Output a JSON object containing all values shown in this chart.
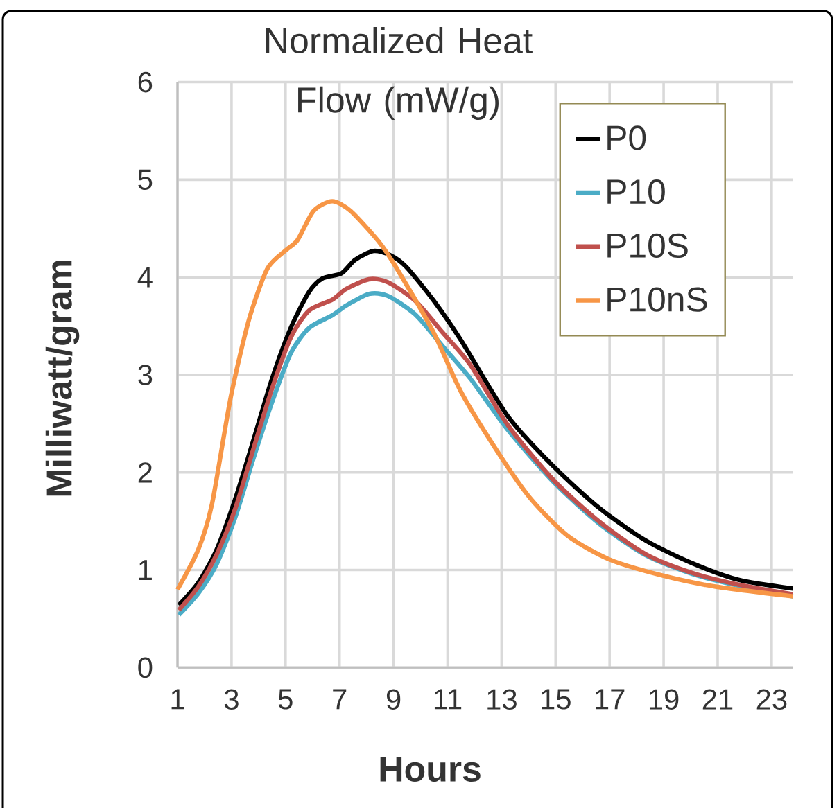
{
  "chart_data": {
    "type": "line",
    "title": "Normalized Heat Flow (mW/g)",
    "xlabel": "Hours",
    "ylabel": "Milliwatt/gram",
    "xlim": [
      1,
      23.8
    ],
    "xticks": [
      1,
      3,
      5,
      7,
      9,
      11,
      13,
      15,
      17,
      19,
      21,
      23
    ],
    "ylim": [
      0,
      6
    ],
    "yticks": [
      0,
      1,
      2,
      3,
      4,
      5,
      6
    ],
    "grid": true,
    "legend": "top right",
    "series": [
      {
        "name": "P0",
        "color": "#000000",
        "x": [
          1.05,
          1.77,
          2.45,
          3.14,
          3.82,
          4.5,
          5.19,
          5.87,
          6.38,
          7.07,
          7.58,
          8.26,
          8.86,
          9.46,
          10.49,
          11.51,
          13.22,
          14.93,
          16.64,
          18.35,
          20.06,
          21.77,
          23.79
        ],
        "values": [
          0.64,
          0.87,
          1.21,
          1.73,
          2.34,
          2.96,
          3.48,
          3.85,
          3.99,
          4.04,
          4.18,
          4.27,
          4.23,
          4.11,
          3.76,
          3.35,
          2.58,
          2.06,
          1.63,
          1.3,
          1.07,
          0.9,
          0.81
        ]
      },
      {
        "name": "P10",
        "color": "#4bacc6",
        "x": [
          1.05,
          1.77,
          2.45,
          3.14,
          3.82,
          4.5,
          5.19,
          5.87,
          6.73,
          7.24,
          8.09,
          8.78,
          9.8,
          10.83,
          11.85,
          13.22,
          14.93,
          16.64,
          18.35,
          20.06,
          21.77,
          23.79
        ],
        "values": [
          0.54,
          0.76,
          1.06,
          1.54,
          2.15,
          2.72,
          3.22,
          3.48,
          3.61,
          3.71,
          3.83,
          3.81,
          3.62,
          3.29,
          2.96,
          2.44,
          1.9,
          1.47,
          1.15,
          0.96,
          0.84,
          0.73
        ]
      },
      {
        "name": "P10S",
        "color": "#c0504d",
        "x": [
          1.05,
          1.77,
          2.45,
          3.14,
          3.82,
          4.5,
          5.19,
          5.87,
          6.73,
          7.24,
          8.09,
          8.78,
          9.8,
          10.83,
          11.85,
          13.22,
          14.93,
          16.64,
          18.35,
          20.06,
          21.77,
          23.79
        ],
        "values": [
          0.59,
          0.83,
          1.16,
          1.63,
          2.25,
          2.86,
          3.38,
          3.66,
          3.77,
          3.88,
          3.98,
          3.95,
          3.76,
          3.43,
          3.1,
          2.49,
          1.92,
          1.49,
          1.16,
          0.97,
          0.85,
          0.75
        ]
      },
      {
        "name": "P10nS",
        "color": "#f79646",
        "x": [
          1.0,
          1.77,
          2.28,
          2.97,
          3.65,
          4.33,
          5.02,
          5.44,
          6.04,
          6.73,
          7.41,
          8.44,
          9.12,
          10.49,
          11.51,
          12.88,
          14.08,
          15.45,
          16.98,
          18.87,
          20.92,
          23.79
        ],
        "values": [
          0.8,
          1.21,
          1.68,
          2.77,
          3.57,
          4.09,
          4.28,
          4.38,
          4.68,
          4.78,
          4.68,
          4.37,
          4.09,
          3.43,
          2.82,
          2.2,
          1.73,
          1.35,
          1.11,
          0.95,
          0.83,
          0.73
        ]
      }
    ]
  }
}
